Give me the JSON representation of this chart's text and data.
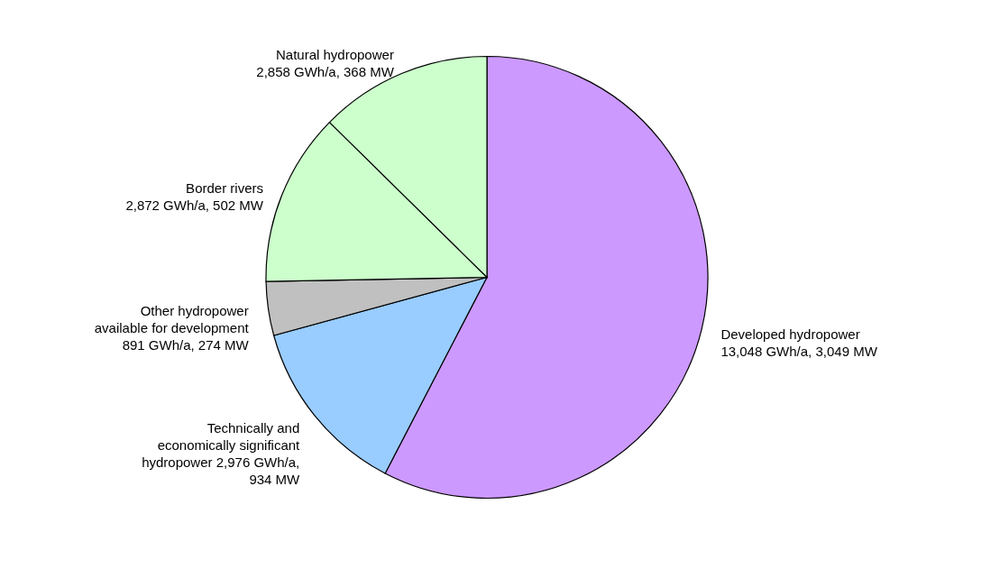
{
  "chart_data": {
    "type": "pie",
    "categories": [
      "Developed hydropower",
      "Technically and economically significant",
      "Other hydropower available for development",
      "Border rivers",
      "Natural hydropower"
    ],
    "values": [
      13048,
      2976,
      891,
      2872,
      2858
    ],
    "value_labels": [
      "13,048 GWh/a, 3,049 MW",
      "hydropower 2,976 GWh/a, 934 MW",
      "891 GWh/a, 274 MW",
      "2,872 GWh/a, 502 MW",
      "2,858 GWh/a, 368 MW"
    ],
    "colors": [
      "#cc99ff",
      "#99ccff",
      "#c0c0c0",
      "#ccffcc",
      "#ccffcc"
    ]
  }
}
